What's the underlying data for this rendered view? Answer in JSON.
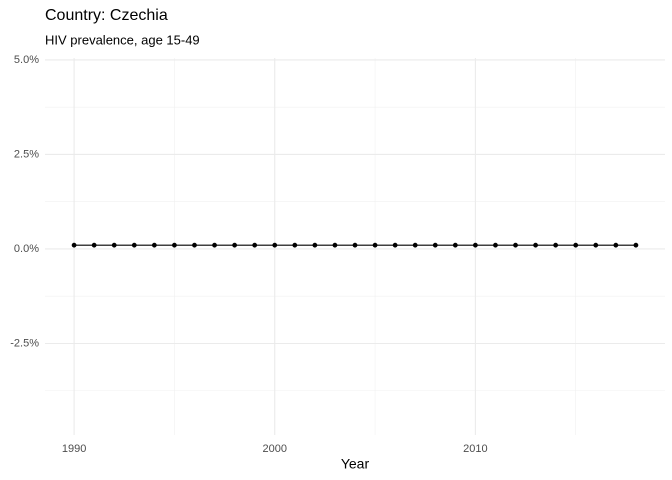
{
  "chart_data": {
    "type": "line",
    "title": "Country: Czechia",
    "subtitle": "HIV prevalence, age 15-49",
    "x_label": "Year",
    "x": [
      1990,
      1991,
      1992,
      1993,
      1994,
      1995,
      1996,
      1997,
      1998,
      1999,
      2000,
      2001,
      2002,
      2003,
      2004,
      2005,
      2006,
      2007,
      2008,
      2009,
      2010,
      2011,
      2012,
      2013,
      2014,
      2015,
      2016,
      2017,
      2018
    ],
    "series": [
      {
        "color": "#000000",
        "values": [
          0.1,
          0.1,
          0.1,
          0.1,
          0.1,
          0.1,
          0.1,
          0.1,
          0.1,
          0.1,
          0.1,
          0.1,
          0.1,
          0.1,
          0.1,
          0.1,
          0.1,
          0.1,
          0.1,
          0.1,
          0.1,
          0.1,
          0.1,
          0.1,
          0.1,
          0.1,
          0.1,
          0.1,
          0.1
        ]
      }
    ],
    "xlim": [
      1988.55,
      2019.45
    ],
    "xticks": [
      1990,
      2000,
      2010
    ],
    "ylim": [
      -4.92,
      5.05
    ],
    "yticks": [
      {
        "value": -2.5,
        "label": "-2.5%"
      },
      {
        "value": 0,
        "label": "0.0%"
      },
      {
        "value": 2.5,
        "label": "2.5%"
      },
      {
        "value": 5,
        "label": "5.0%"
      }
    ],
    "grid": true
  }
}
